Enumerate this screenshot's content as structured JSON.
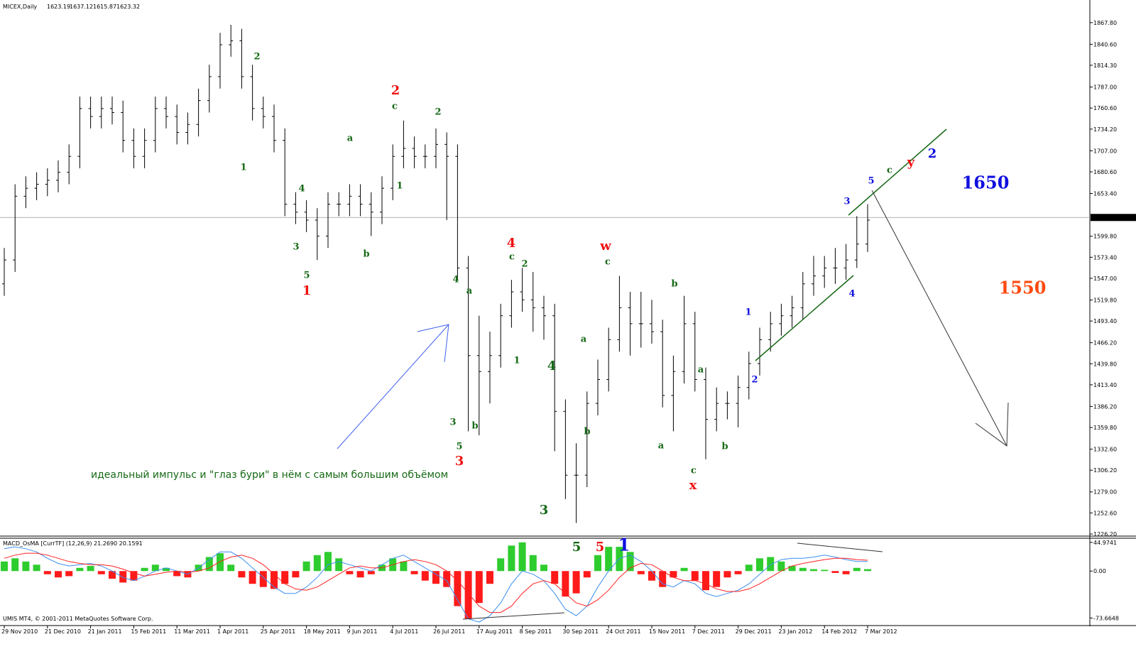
{
  "chart_data": [
    {
      "type": "ohlc",
      "title": "MICEX,Daily",
      "header_values": [
        1623.19,
        1637.12,
        1615.87,
        1623.32
      ],
      "color": "#000000",
      "current_price": 1623.32,
      "categories": [
        "29 Nov 2010",
        null,
        null,
        null,
        "21 Dec 2010",
        null,
        null,
        null,
        "21 Jan 2011",
        null,
        null,
        null,
        "15 Feb 2011",
        null,
        null,
        null,
        "11 Mar 2011",
        null,
        null,
        null,
        "1 Apr 2011",
        null,
        null,
        null,
        "25 Apr 2011",
        null,
        null,
        null,
        "18 May 2011",
        null,
        null,
        null,
        "9 Jun 2011",
        null,
        null,
        null,
        "4 Jul 2011",
        null,
        null,
        null,
        "26 Jul 2011",
        null,
        null,
        null,
        "17 Aug 2011",
        null,
        null,
        null,
        "8 Sep 2011",
        null,
        null,
        null,
        "30 Sep 2011",
        null,
        null,
        null,
        "24 Oct 2011",
        null,
        null,
        null,
        "15 Nov 2011",
        null,
        null,
        null,
        "7 Dec 2011",
        null,
        null,
        null,
        "29 Dec 2011",
        null,
        null,
        null,
        "23 Jan 2012",
        null,
        null,
        null,
        "14 Feb 2012",
        null,
        null,
        null,
        "7 Mar 2012"
      ],
      "open": [
        1540,
        1570,
        1650,
        1660,
        1665,
        1670,
        1680,
        1700,
        1760,
        1750,
        1760,
        1755,
        1720,
        1700,
        1720,
        1760,
        1750,
        1730,
        1740,
        1770,
        1800,
        1840,
        1845,
        1800,
        1760,
        1750,
        1720,
        1640,
        1630,
        1620,
        1600,
        1640,
        1640,
        1650,
        1640,
        1630,
        1660,
        1700,
        1710,
        1700,
        1700,
        1715,
        1700,
        1560,
        1450,
        1430,
        1450,
        1500,
        1530,
        1520,
        1510,
        1500,
        1380,
        1300,
        1300,
        1390,
        1420,
        1470,
        1510,
        1490,
        1490,
        1480,
        1400,
        1430,
        1490,
        1420,
        1370,
        1390,
        1390,
        1410,
        1440,
        1470,
        1490,
        1500,
        1510,
        1540,
        1550,
        1560,
        1560,
        1570,
        1590
      ],
      "high": [
        1585,
        1665,
        1675,
        1680,
        1685,
        1695,
        1715,
        1775,
        1775,
        1775,
        1775,
        1770,
        1735,
        1735,
        1775,
        1775,
        1765,
        1755,
        1785,
        1815,
        1855,
        1865,
        1860,
        1815,
        1775,
        1765,
        1735,
        1655,
        1645,
        1635,
        1655,
        1655,
        1665,
        1665,
        1655,
        1675,
        1715,
        1745,
        1725,
        1715,
        1735,
        1730,
        1715,
        1575,
        1500,
        1480,
        1515,
        1545,
        1560,
        1555,
        1525,
        1515,
        1395,
        1340,
        1405,
        1445,
        1485,
        1550,
        1530,
        1530,
        1520,
        1495,
        1450,
        1525,
        1505,
        1435,
        1410,
        1405,
        1425,
        1455,
        1485,
        1505,
        1515,
        1525,
        1555,
        1575,
        1575,
        1585,
        1590,
        1625,
        1640
      ],
      "low": [
        1525,
        1555,
        1635,
        1645,
        1650,
        1655,
        1665,
        1685,
        1735,
        1735,
        1740,
        1705,
        1685,
        1685,
        1705,
        1735,
        1715,
        1715,
        1725,
        1755,
        1785,
        1825,
        1785,
        1745,
        1735,
        1705,
        1625,
        1615,
        1605,
        1570,
        1585,
        1625,
        1625,
        1625,
        1600,
        1615,
        1645,
        1685,
        1685,
        1685,
        1685,
        1620,
        1545,
        1355,
        1350,
        1390,
        1435,
        1485,
        1505,
        1480,
        1470,
        1330,
        1270,
        1240,
        1285,
        1375,
        1405,
        1455,
        1450,
        1460,
        1465,
        1385,
        1355,
        1415,
        1405,
        1320,
        1355,
        1370,
        1360,
        1395,
        1425,
        1455,
        1475,
        1485,
        1495,
        1525,
        1535,
        1540,
        1545,
        1560,
        1580
      ],
      "close": [
        1570,
        1650,
        1660,
        1665,
        1670,
        1680,
        1700,
        1760,
        1750,
        1760,
        1755,
        1720,
        1700,
        1720,
        1760,
        1750,
        1730,
        1740,
        1770,
        1800,
        1840,
        1845,
        1800,
        1760,
        1750,
        1720,
        1640,
        1630,
        1620,
        1600,
        1640,
        1640,
        1650,
        1640,
        1630,
        1660,
        1700,
        1710,
        1700,
        1700,
        1715,
        1700,
        1560,
        1450,
        1430,
        1450,
        1500,
        1530,
        1520,
        1510,
        1500,
        1380,
        1300,
        1300,
        1390,
        1420,
        1470,
        1510,
        1490,
        1490,
        1480,
        1400,
        1430,
        1490,
        1420,
        1370,
        1390,
        1390,
        1410,
        1440,
        1470,
        1490,
        1500,
        1510,
        1540,
        1550,
        1560,
        1560,
        1570,
        1590,
        1620
      ],
      "ylim": [
        1224.42,
        1891.73
      ],
      "yticks": [
        {
          "value": 1867.8,
          "label": "1867.80"
        },
        {
          "value": 1840.6,
          "label": "1840.60"
        },
        {
          "value": 1814.3,
          "label": "1814.30"
        },
        {
          "value": 1787.0,
          "label": "1787.00"
        },
        {
          "value": 1760.6,
          "label": "1760.60"
        },
        {
          "value": 1734.2,
          "label": "1734.20"
        },
        {
          "value": 1707.0,
          "label": "1707.00"
        },
        {
          "value": 1680.6,
          "label": "1680.60"
        },
        {
          "value": 1653.4,
          "label": "1653.40"
        },
        {
          "value": 1599.8,
          "label": "1599.80"
        },
        {
          "value": 1573.4,
          "label": "1573.40"
        },
        {
          "value": 1547.0,
          "label": "1547.00"
        },
        {
          "value": 1519.8,
          "label": "1519.80"
        },
        {
          "value": 1493.4,
          "label": "1493.40"
        },
        {
          "value": 1466.2,
          "label": "1466.20"
        },
        {
          "value": 1439.8,
          "label": "1439.80"
        },
        {
          "value": 1413.4,
          "label": "1413.40"
        },
        {
          "value": 1386.2,
          "label": "1386.20"
        },
        {
          "value": 1359.8,
          "label": "1359.80"
        },
        {
          "value": 1332.6,
          "label": "1332.60"
        },
        {
          "value": 1306.2,
          "label": "1306.20"
        },
        {
          "value": 1279.0,
          "label": "1279.00"
        },
        {
          "value": 1252.6,
          "label": "1252.60"
        },
        {
          "value": 1226.2,
          "label": "1226.20"
        }
      ],
      "annotations": [
        "2",
        "1",
        "4",
        "3",
        "5",
        "1",
        "b",
        "a",
        "c",
        "2",
        "1",
        "2",
        "4",
        "a",
        "3",
        "b",
        "5",
        "3",
        "4",
        "c",
        "2",
        "1",
        "4",
        "3",
        "5",
        "5",
        "1",
        "b",
        "a",
        "w",
        "c",
        "b",
        "a",
        "a",
        "b",
        "c",
        "x",
        "1",
        "2",
        "3",
        "4",
        "5",
        "c",
        "y",
        "2",
        "1650",
        "1550"
      ],
      "caption": "идеальный импульс и \"глаз бури\" в нём с самым большим объёмом"
    },
    {
      "type": "macd",
      "title": "MACD_OsMA [CurrTF] (12,26,9) 21.2690 20.1591",
      "footer": "UMIS MT4, © 2001-2011 MetaQuotes Software Corp.",
      "histogram": [
        15,
        20,
        15,
        10,
        -5,
        -10,
        -8,
        5,
        8,
        -5,
        -12,
        -18,
        -15,
        5,
        10,
        5,
        -8,
        -10,
        10,
        22,
        28,
        10,
        -10,
        -20,
        -25,
        -28,
        -20,
        -10,
        15,
        25,
        30,
        20,
        -5,
        -10,
        -5,
        10,
        20,
        15,
        -5,
        -15,
        -20,
        -25,
        -55,
        -75,
        -50,
        -20,
        20,
        40,
        45,
        25,
        10,
        -20,
        -40,
        -35,
        -10,
        25,
        38,
        38,
        30,
        -5,
        -15,
        -25,
        -10,
        5,
        -15,
        -30,
        -25,
        -10,
        -5,
        10,
        20,
        22,
        15,
        8,
        5,
        3,
        2,
        -3,
        -5,
        5,
        3
      ],
      "histogram_colors": {
        "positive": "#2ecc2e",
        "negative": "#ff1a1a"
      },
      "lines": [
        {
          "color": "#3a8ff0",
          "values": [
            35,
            38,
            35,
            30,
            20,
            12,
            8,
            10,
            12,
            8,
            0,
            -10,
            -15,
            -8,
            0,
            5,
            0,
            -5,
            5,
            18,
            30,
            30,
            20,
            5,
            -10,
            -25,
            -35,
            -35,
            -25,
            -10,
            10,
            15,
            10,
            5,
            0,
            10,
            20,
            25,
            15,
            5,
            -5,
            -15,
            -45,
            -75,
            -80,
            -70,
            -50,
            -20,
            0,
            -5,
            -15,
            -35,
            -60,
            -70,
            -55,
            -25,
            0,
            20,
            25,
            15,
            0,
            -20,
            -25,
            -15,
            -20,
            -35,
            -40,
            -35,
            -30,
            -20,
            -5,
            10,
            18,
            20,
            20,
            22,
            25,
            22,
            18,
            15,
            15
          ]
        },
        {
          "color": "#ff2020",
          "values": [
            20,
            25,
            28,
            28,
            25,
            20,
            15,
            12,
            10,
            10,
            8,
            3,
            -3,
            -8,
            -5,
            -2,
            0,
            -2,
            0,
            5,
            15,
            22,
            25,
            20,
            10,
            -5,
            -20,
            -28,
            -30,
            -25,
            -15,
            -5,
            5,
            8,
            5,
            5,
            10,
            15,
            18,
            15,
            10,
            0,
            -15,
            -35,
            -55,
            -65,
            -65,
            -55,
            -35,
            -20,
            -15,
            -20,
            -35,
            -50,
            -55,
            -45,
            -30,
            -10,
            5,
            12,
            10,
            0,
            -10,
            -15,
            -15,
            -20,
            -28,
            -32,
            -32,
            -28,
            -20,
            -10,
            0,
            8,
            12,
            15,
            18,
            20,
            20,
            18,
            17
          ]
        }
      ],
      "ylim": [
        -84.4,
        50.4
      ],
      "yticks": [
        {
          "value": 44.9741,
          "label": "44.9741"
        },
        {
          "value": 0,
          "label": "0.00"
        },
        {
          "value": -73.6648,
          "label": "-73.6648"
        }
      ]
    }
  ]
}
